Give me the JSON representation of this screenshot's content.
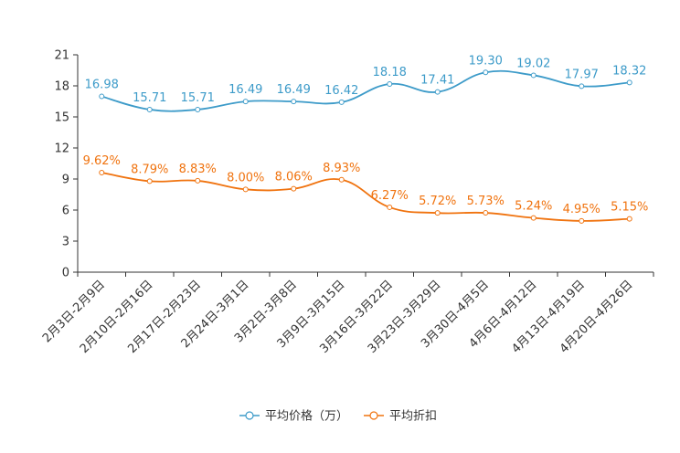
{
  "chart_data": {
    "type": "line",
    "title": "",
    "xlabel": "",
    "ylabel": "",
    "ylim": [
      0,
      21
    ],
    "yticks": [
      0,
      3,
      6,
      9,
      12,
      15,
      18,
      21
    ],
    "ytick_labels": [
      "0",
      "3",
      "6",
      "9",
      "12",
      "15",
      "18",
      "21"
    ],
    "categories": [
      "2月3日-2月9日",
      "2月10日-2月16日",
      "2月17日-2月23日",
      "2月24日-3月1日",
      "3月2日-3月8日",
      "3月9日-3月15日",
      "3月16日-3月22日",
      "3月23日-3月29日",
      "3月30日-4月5日",
      "4月6日-4月12日",
      "4月13日-4月19日",
      "4月20日-4月26日"
    ],
    "series": [
      {
        "name": "平均价格（万）",
        "color": "#3d9bc9",
        "values": [
          16.98,
          15.71,
          15.71,
          16.49,
          16.49,
          16.42,
          18.18,
          17.41,
          19.3,
          19.02,
          17.97,
          18.32
        ],
        "labels": [
          "16.98",
          "15.71",
          "15.71",
          "16.49",
          "16.49",
          "16.42",
          "18.18",
          "17.41",
          "19.30",
          "19.02",
          "17.97",
          "18.32"
        ]
      },
      {
        "name": "平均折扣",
        "color": "#f0730f",
        "values": [
          9.62,
          8.79,
          8.83,
          8.0,
          8.06,
          8.93,
          6.27,
          5.72,
          5.73,
          5.24,
          4.95,
          5.15
        ],
        "labels": [
          "9.62%",
          "8.79%",
          "8.83%",
          "8.00%",
          "8.06%",
          "8.93%",
          "6.27%",
          "5.72%",
          "5.73%",
          "5.24%",
          "4.95%",
          "5.15%"
        ]
      }
    ],
    "legend_position": "bottom-center",
    "grid": false
  }
}
